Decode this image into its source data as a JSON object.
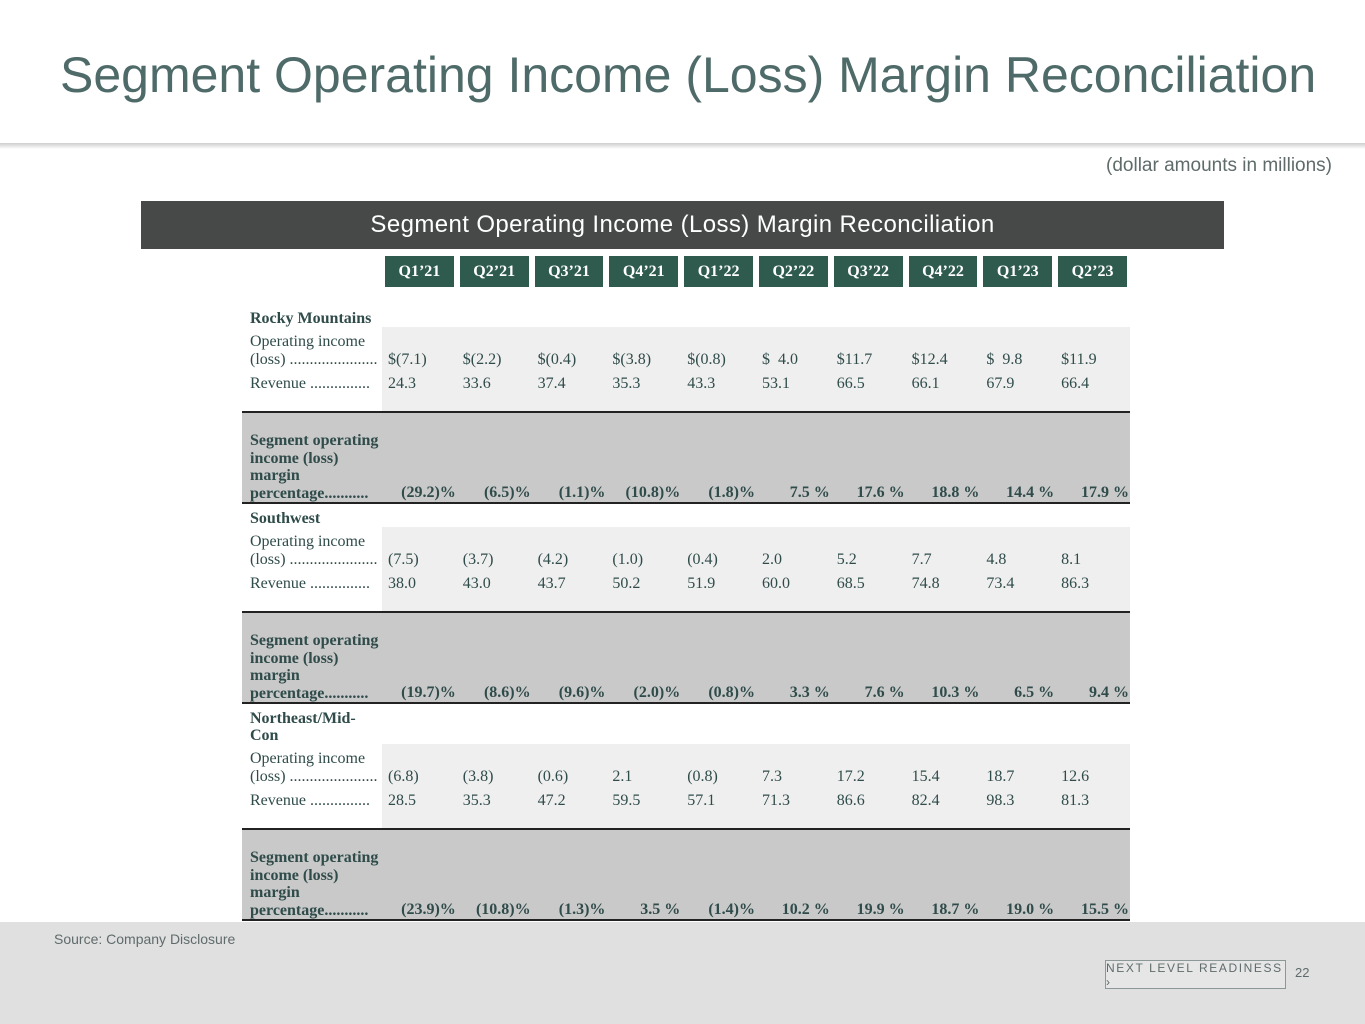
{
  "slide": {
    "title": "Segment Operating Income (Loss) Margin Reconciliation",
    "units_note": "(dollar amounts in millions)",
    "source": "Source: Company Disclosure",
    "brand": "NEXT LEVEL READINESS ›",
    "page_number": "22"
  },
  "table": {
    "header": "Segment Operating Income (Loss) Margin Reconciliation",
    "quarters": [
      "Q1’21",
      "Q2’21",
      "Q3’21",
      "Q4’21",
      "Q1’22",
      "Q2’22",
      "Q3’22",
      "Q4’22",
      "Q1’23",
      "Q2’23"
    ],
    "segments": [
      {
        "name": "Rocky Mountains",
        "oi_label": "Operating income (loss) ......................",
        "oi_values": [
          "$(7.1)",
          "$(2.2)",
          "$(0.4)",
          "$(3.8)",
          "$(0.8)",
          "$  4.0",
          "$11.7",
          "$12.4",
          "$  9.8",
          "$11.9"
        ],
        "rev_label": "Revenue ...............",
        "rev_values": [
          "24.3",
          "33.6",
          "37.4",
          "35.3",
          "43.3",
          "53.1",
          "66.5",
          "66.1",
          "67.9",
          "66.4"
        ],
        "pct_label": "Segment operating income (loss) margin percentage...........",
        "pct_values": [
          "(29.2)%",
          "(6.5)%",
          "(1.1)%",
          "(10.8)%",
          "(1.8)%",
          "7.5 %",
          "17.6 %",
          "18.8 %",
          "14.4 %",
          "17.9 %"
        ]
      },
      {
        "name": "Southwest",
        "oi_label": "Operating income (loss) ......................",
        "oi_values": [
          "(7.5)",
          "(3.7)",
          "(4.2)",
          "(1.0)",
          "(0.4)",
          "2.0",
          "5.2",
          "7.7",
          "4.8",
          "8.1"
        ],
        "rev_label": "Revenue ...............",
        "rev_values": [
          "38.0",
          "43.0",
          "43.7",
          "50.2",
          "51.9",
          "60.0",
          "68.5",
          "74.8",
          "73.4",
          "86.3"
        ],
        "pct_label": "Segment operating income (loss) margin percentage...........",
        "pct_values": [
          "(19.7)%",
          "(8.6)%",
          "(9.6)%",
          "(2.0)%",
          "(0.8)%",
          "3.3 %",
          "7.6 %",
          "10.3 %",
          "6.5 %",
          "9.4 %"
        ]
      },
      {
        "name": "Northeast/Mid-Con",
        "oi_label": "Operating income (loss) ......................",
        "oi_values": [
          "(6.8)",
          "(3.8)",
          "(0.6)",
          "2.1",
          "(0.8)",
          "7.3",
          "17.2",
          "15.4",
          "18.7",
          "12.6"
        ],
        "rev_label": "Revenue ...............",
        "rev_values": [
          "28.5",
          "35.3",
          "47.2",
          "59.5",
          "57.1",
          "71.3",
          "86.6",
          "82.4",
          "98.3",
          "81.3"
        ],
        "pct_label": "Segment operating income (loss) margin percentage...........",
        "pct_values": [
          "(23.9)%",
          "(10.8)%",
          "(1.3)%",
          "3.5 %",
          "(1.4)%",
          "10.2 %",
          "19.9 %",
          "18.7 %",
          "19.0 %",
          "15.5 %"
        ]
      }
    ]
  }
}
